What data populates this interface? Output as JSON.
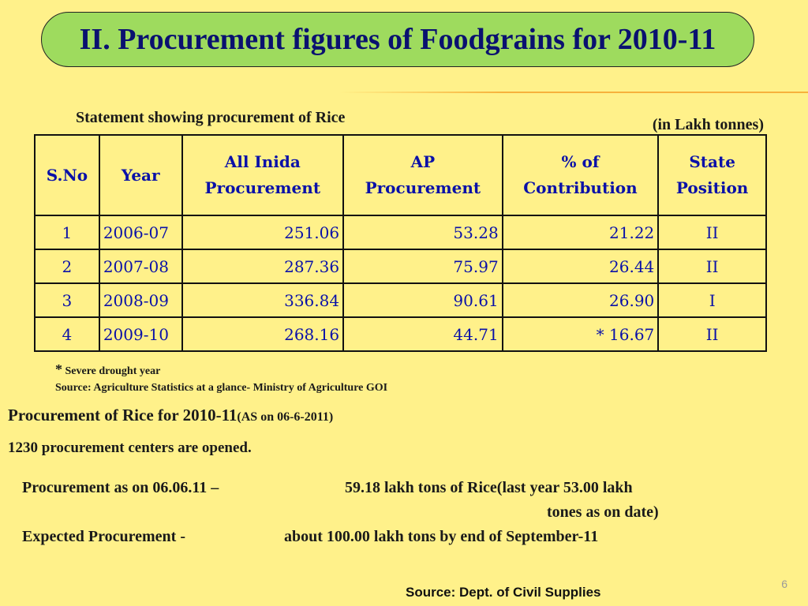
{
  "title": "II. Procurement figures of Foodgrains for 2010-11",
  "table_caption": "Statement showing procurement of Rice",
  "units": "(in Lakh tonnes)",
  "table": {
    "headers": {
      "sno": "S.No",
      "year": "Year",
      "all_india_1": "All Inida",
      "all_india_2": "Procurement",
      "ap_1": "AP",
      "ap_2": "Procurement",
      "pct_1": "% of",
      "pct_2": "Contribution",
      "state_1": "State",
      "state_2": "Position"
    },
    "rows": [
      {
        "sno": "1",
        "year": "2006-07",
        "all_india": "251.06",
        "ap": "53.28",
        "pct": "21.22",
        "position": "II"
      },
      {
        "sno": "2",
        "year": "2007-08",
        "all_india": "287.36",
        "ap": "75.97",
        "pct": "26.44",
        "position": "II"
      },
      {
        "sno": "3",
        "year": "2008-09",
        "all_india": "336.84",
        "ap": "90.61",
        "pct": "26.90",
        "position": "I"
      },
      {
        "sno": "4",
        "year": "2009-10",
        "all_india": "268.16",
        "ap": "44.71",
        "pct": "* 16.67",
        "position": "II"
      }
    ]
  },
  "footnote": {
    "star": "*",
    "text": "Severe drought year"
  },
  "table_source": "Source: Agriculture Statistics at a glance- Ministry of Agriculture GOI",
  "section": {
    "heading": "Procurement of Rice for 2010-11",
    "heading_note": "(AS on 06-6-2011)",
    "centers": "1230 procurement centers are opened.",
    "procurement_label": "Procurement as on 06.06.11 –",
    "procurement_value": "59.18 lakh tons of Rice(last year 53.00 lakh",
    "procurement_value_cont": "tones as on date)",
    "expected_label": "Expected Procurement -",
    "expected_value": "about 100.00 lakh tons by end of September-11"
  },
  "source": "Source: Dept. of Civil Supplies",
  "page_number": "6"
}
